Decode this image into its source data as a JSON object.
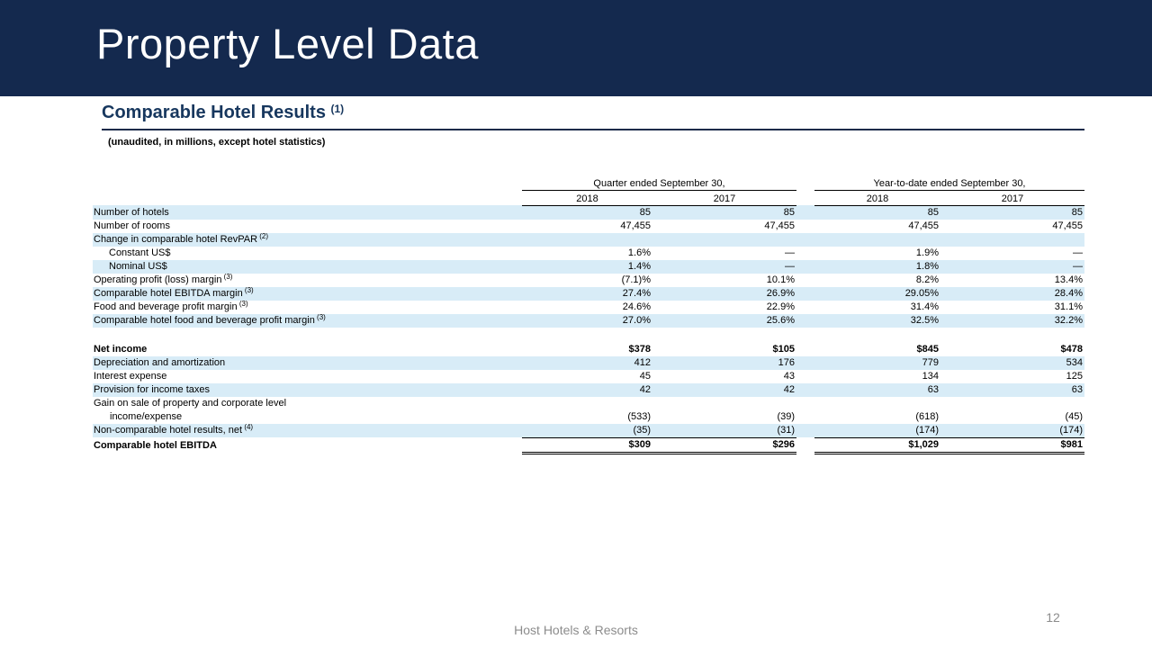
{
  "slide": {
    "title": "Property Level Data",
    "footer": "Host Hotels & Resorts",
    "page_number": "12"
  },
  "section": {
    "heading": "Comparable Hotel Results",
    "heading_footnote": "(1)",
    "subtitle": "(unaudited, in millions, except hotel statistics)"
  },
  "table": {
    "column_groups": [
      {
        "label": "Quarter ended September 30,",
        "years": [
          "2018",
          "2017"
        ]
      },
      {
        "label": "Year-to-date ended September 30,",
        "years": [
          "2018",
          "2017"
        ]
      }
    ],
    "rows": [
      {
        "label": "Number of hotels",
        "values": [
          "85",
          "85",
          "85",
          "85"
        ],
        "shaded": true
      },
      {
        "label": "Number of rooms",
        "values": [
          "47,455",
          "47,455",
          "47,455",
          "47,455"
        ]
      },
      {
        "label": "Change in comparable hotel RevPAR",
        "sup": "(2)",
        "values": [
          "",
          "",
          "",
          ""
        ],
        "shaded": true
      },
      {
        "label": "Constant US$",
        "indent": true,
        "values": [
          "1.6%",
          "—",
          "1.9%",
          "—"
        ]
      },
      {
        "label": "Nominal US$",
        "indent": true,
        "values": [
          "1.4%",
          "—",
          "1.8%",
          "—"
        ],
        "shaded": true
      },
      {
        "label": "Operating profit (loss) margin",
        "sup": "(3)",
        "values": [
          "(7.1)%",
          "10.1%",
          "8.2%",
          "13.4%"
        ]
      },
      {
        "label": "Comparable hotel EBITDA margin",
        "sup": "(3)",
        "values": [
          "27.4%",
          "26.9%",
          "29.05%",
          "28.4%"
        ],
        "shaded": true
      },
      {
        "label": "Food and beverage profit margin",
        "sup": "(3)",
        "values": [
          "24.6%",
          "22.9%",
          "31.4%",
          "31.1%"
        ]
      },
      {
        "label": "Comparable hotel food and beverage profit margin",
        "sup": "(3)",
        "values": [
          "27.0%",
          "25.6%",
          "32.5%",
          "32.2%"
        ],
        "shaded": true
      },
      {
        "blank": true
      },
      {
        "label": "Net income",
        "bold": true,
        "values": [
          "$378",
          "$105",
          "$845",
          "$478"
        ]
      },
      {
        "label": "Depreciation and amortization",
        "values": [
          "412",
          "176",
          "779",
          "534"
        ],
        "shaded": true
      },
      {
        "label": "Interest expense",
        "values": [
          "45",
          "43",
          "134",
          "125"
        ]
      },
      {
        "label": "Provision for income taxes",
        "values": [
          "42",
          "42",
          "63",
          "63"
        ],
        "shaded": true
      },
      {
        "label": "Gain on sale of property and corporate level",
        "label2": "income/expense",
        "values": [
          "(533)",
          "(39)",
          "(618)",
          "(45)"
        ]
      },
      {
        "label": "Non-comparable hotel results, net",
        "sup": "(4)",
        "values": [
          "(35)",
          "(31)",
          "(174)",
          "(174)"
        ],
        "shaded": true,
        "underline": "single"
      },
      {
        "label": "Comparable hotel EBITDA",
        "bold": true,
        "values": [
          "$309",
          "$296",
          "$1,029",
          "$981"
        ],
        "underline": "double"
      }
    ]
  },
  "colors": {
    "navy": "#14294E",
    "heading": "#17375E",
    "row-shade": "#D8ECF7",
    "footer-gray": "#8C8C8C"
  }
}
